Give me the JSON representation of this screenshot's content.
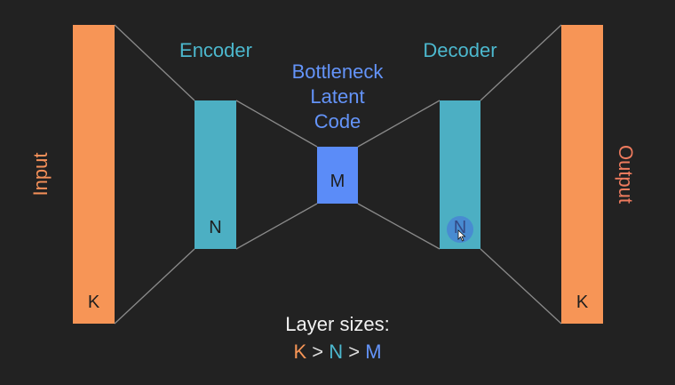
{
  "layers": {
    "input": {
      "label": "Input",
      "size_label": "K",
      "color": "#f79556"
    },
    "encoder": {
      "heading": "Encoder",
      "size_label": "N",
      "color": "#4cafc3"
    },
    "bottleneck": {
      "heading_lines": [
        "Bottleneck",
        "Latent",
        "Code"
      ],
      "size_label": "M",
      "color": "#5b8cf8"
    },
    "decoder": {
      "heading": "Decoder",
      "size_label": "N",
      "color": "#4cafc3"
    },
    "output": {
      "label": "Output",
      "size_label": "K",
      "color": "#f79556"
    }
  },
  "caption": {
    "title": "Layer sizes:",
    "k": "K",
    "gt1": ">",
    "n": "N",
    "gt2": ">",
    "m": "M"
  },
  "colors": {
    "background": "#222222",
    "connector": "#8a8a8a"
  },
  "icons": [
    "mouse-cursor-icon"
  ]
}
